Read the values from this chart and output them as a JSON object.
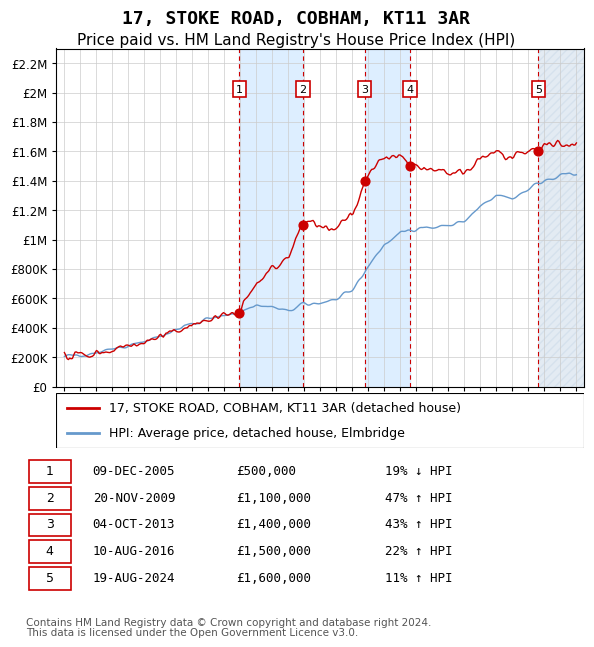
{
  "title": "17, STOKE ROAD, COBHAM, KT11 3AR",
  "subtitle": "Price paid vs. HM Land Registry's House Price Index (HPI)",
  "footer_line1": "Contains HM Land Registry data © Crown copyright and database right 2024.",
  "footer_line2": "This data is licensed under the Open Government Licence v3.0.",
  "legend_red": "17, STOKE ROAD, COBHAM, KT11 3AR (detached house)",
  "legend_blue": "HPI: Average price, detached house, Elmbridge",
  "sales": [
    {
      "num": 1,
      "date": "09-DEC-2005",
      "price": 500000,
      "year": 2005.94,
      "pct": "19%",
      "dir": "↓"
    },
    {
      "num": 2,
      "date": "20-NOV-2009",
      "price": 1100000,
      "year": 2009.89,
      "pct": "47%",
      "dir": "↑"
    },
    {
      "num": 3,
      "date": "04-OCT-2013",
      "price": 1400000,
      "year": 2013.76,
      "pct": "43%",
      "dir": "↑"
    },
    {
      "num": 4,
      "date": "10-AUG-2016",
      "price": 1500000,
      "year": 2016.61,
      "pct": "22%",
      "dir": "↑"
    },
    {
      "num": 5,
      "date": "19-AUG-2024",
      "price": 1600000,
      "year": 2024.63,
      "pct": "11%",
      "dir": "↑"
    }
  ],
  "ylim": [
    0,
    2300000
  ],
  "xlim_start": 1994.5,
  "xlim_end": 2027.5,
  "red_color": "#cc0000",
  "blue_color": "#6699cc",
  "shade_color": "#ddeeff",
  "hatch_color": "#aabbcc",
  "grid_color": "#cccccc",
  "title_fontsize": 13,
  "subtitle_fontsize": 11,
  "axis_label_fontsize": 9,
  "legend_fontsize": 9,
  "table_fontsize": 9,
  "footer_fontsize": 7.5
}
